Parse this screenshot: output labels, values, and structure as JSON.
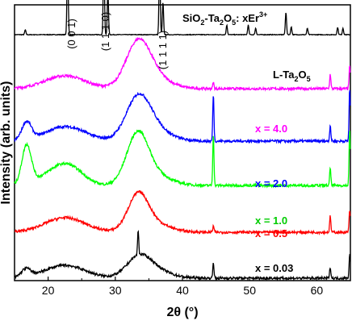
{
  "chart_data": {
    "type": "line",
    "xlabel": "2θ (°)",
    "ylabel": "Intensity (arb. units)",
    "xlim": [
      15,
      65
    ],
    "xticks": [
      "20",
      "30",
      "40",
      "50",
      "60"
    ],
    "xtick_values": [
      20,
      30,
      40,
      50,
      60
    ],
    "y_ticks_shown": false,
    "grid": false,
    "legend": "none",
    "annotations": {
      "sample_label": "SiO",
      "sample_label_sub1": "2",
      "sample_label_mid": "-Ta",
      "sample_label_sub2": "2",
      "sample_label_o": "O",
      "sample_label_sub3": "5",
      "sample_label_tail": ": xEr",
      "sample_label_sup": "3+",
      "planes": [
        {
          "text": "(0 0 1)",
          "x": 22.9
        },
        {
          "text": "(1 1 1 0)",
          "x": 28.3
        },
        {
          "text": "(1 1 1 1)",
          "x": 36.6
        }
      ],
      "reference_label": "L-Ta",
      "reference_sub": "2",
      "reference_tail": "O",
      "reference_sub2": "5"
    },
    "series": [
      {
        "name": "L-Ta2O5",
        "color": "#000000",
        "baseline": 305,
        "peaks": [
          [
            16.6,
            6
          ],
          [
            22.9,
            100
          ],
          [
            28.3,
            105
          ],
          [
            28.9,
            55
          ],
          [
            36.6,
            95
          ],
          [
            37.1,
            40
          ],
          [
            46.6,
            12
          ],
          [
            49.8,
            12
          ],
          [
            50.9,
            8
          ],
          [
            55.4,
            28
          ],
          [
            56.2,
            10
          ],
          [
            58.6,
            8
          ],
          [
            63.1,
            9
          ],
          [
            63.9,
            8
          ]
        ],
        "broad": [],
        "sharp_only": true
      },
      {
        "name": "x = 4.0",
        "color": "#ff00ff",
        "baseline": 238,
        "peaks": [
          [
            44.6,
            8
          ],
          [
            62.0,
            18
          ],
          [
            64.9,
            28
          ]
        ],
        "broad": [
          [
            22.5,
            16,
            3.0
          ],
          [
            33.4,
            52,
            1.8
          ],
          [
            35.5,
            14,
            2.5
          ]
        ]
      },
      {
        "name": "x = 2.0",
        "color": "#0000ff",
        "baseline": 173,
        "peaks": [
          [
            44.6,
            58
          ],
          [
            62.0,
            20
          ],
          [
            64.9,
            65
          ]
        ],
        "broad": [
          [
            16.8,
            22,
            0.7
          ],
          [
            22.6,
            18,
            3.0
          ],
          [
            33.4,
            48,
            1.8
          ],
          [
            35.5,
            15,
            2.5
          ]
        ]
      },
      {
        "name": "x = 1.0",
        "color": "#00ff00",
        "baseline": 118,
        "peaks": [
          [
            44.6,
            64
          ],
          [
            62.0,
            22
          ],
          [
            64.9,
            68
          ]
        ],
        "broad": [
          [
            16.8,
            48,
            0.7
          ],
          [
            21.5,
            18,
            2.5
          ],
          [
            23.5,
            12,
            2.0
          ],
          [
            33.3,
            58,
            1.6
          ],
          [
            35.5,
            14,
            2.5
          ]
        ]
      },
      {
        "name": "x = 0.5",
        "color": "#ff0000",
        "baseline": 60,
        "peaks": [
          [
            44.6,
            8
          ],
          [
            62.0,
            20
          ],
          [
            64.9,
            28
          ]
        ],
        "broad": [
          [
            22.5,
            18,
            3.0
          ],
          [
            33.4,
            42,
            1.5
          ],
          [
            35.5,
            11,
            2.5
          ]
        ]
      },
      {
        "name": "x = 0.03",
        "color": "#000000",
        "baseline": 3,
        "peaks": [
          [
            33.4,
            30
          ],
          [
            44.6,
            20
          ],
          [
            62.0,
            14
          ],
          [
            64.9,
            30
          ]
        ],
        "broad": [
          [
            16.7,
            10,
            0.7
          ],
          [
            22.5,
            16,
            3.0
          ],
          [
            33.5,
            22,
            1.8
          ],
          [
            35.5,
            10,
            2.5
          ]
        ]
      }
    ],
    "series_labels": [
      {
        "text": "x = 4.0",
        "color": "#ff00ff"
      },
      {
        "text": "x = 2.0",
        "color": "#0000ff"
      },
      {
        "text": "x = 1.0",
        "color": "#00cc00"
      },
      {
        "text": "x = 0.5",
        "color": "#ff0000"
      },
      {
        "text": "x = 0.03",
        "color": "#000000"
      }
    ]
  }
}
